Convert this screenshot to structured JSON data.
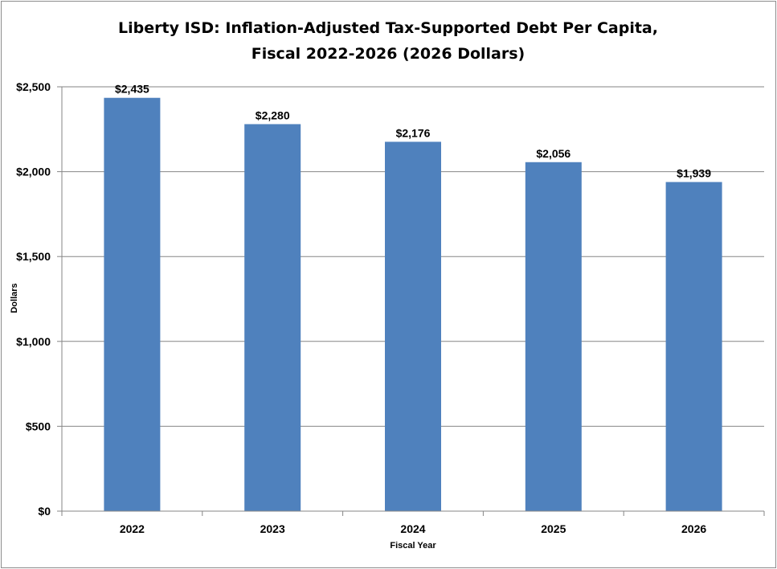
{
  "chart_data": {
    "type": "bar",
    "title": "Liberty ISD: Inflation-Adjusted Tax-Supported Debt Per Capita, Fiscal 2022-2026 (2026 Dollars)",
    "title_lines": [
      "Liberty ISD: Inflation-Adjusted Tax-Supported Debt Per Capita,",
      "Fiscal 2022-2026 (2026 Dollars)"
    ],
    "xlabel": "Fiscal Year",
    "ylabel": "Dollars",
    "categories": [
      "2022",
      "2023",
      "2024",
      "2025",
      "2026"
    ],
    "values": [
      2435,
      2280,
      2176,
      2056,
      1939
    ],
    "data_labels": [
      "$2,435",
      "$2,280",
      "$2,176",
      "$2,056",
      "$1,939"
    ],
    "ylim": [
      0,
      2500
    ],
    "yticks": [
      0,
      500,
      1000,
      1500,
      2000,
      2500
    ],
    "ytick_labels": [
      "$0",
      "$500",
      "$1,000",
      "$1,500",
      "$2,000",
      "$2,500"
    ],
    "grid": true,
    "legend": "none",
    "bar_color": "#4F81BD",
    "gridline_color": "#868686"
  }
}
